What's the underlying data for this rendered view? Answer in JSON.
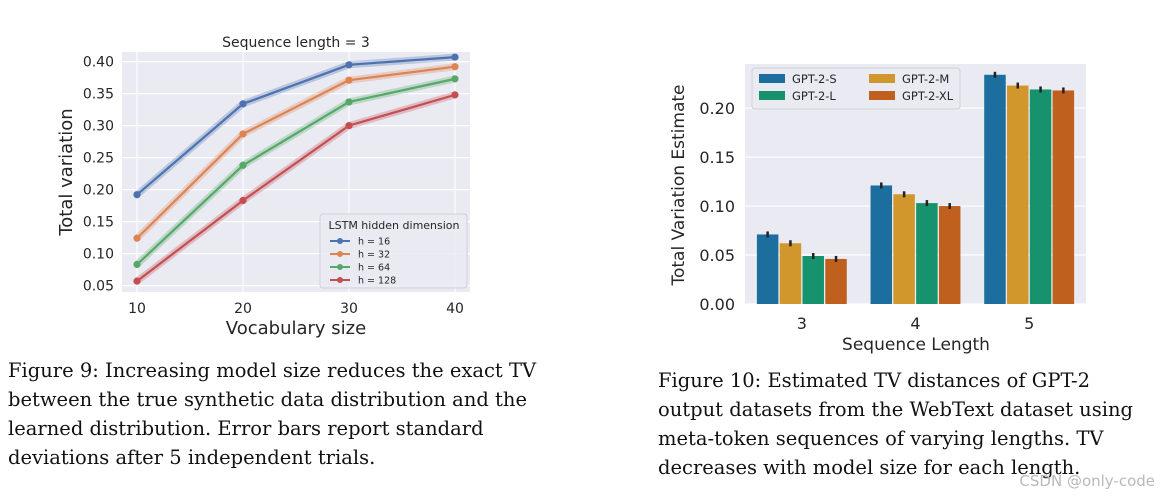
{
  "chart_data": [
    {
      "type": "line",
      "title": "Sequence length = 3",
      "xlabel": "Vocabulary size",
      "ylabel": "Total variation",
      "x": [
        10,
        20,
        30,
        40
      ],
      "xticks": [
        "10",
        "20",
        "30",
        "40"
      ],
      "yticks": [
        "0.05",
        "0.10",
        "0.15",
        "0.20",
        "0.25",
        "0.30",
        "0.35",
        "0.40"
      ],
      "ylim": [
        0.04,
        0.415
      ],
      "legend_title": "LSTM hidden dimension",
      "legend_position": "lower-right",
      "grid": true,
      "series": [
        {
          "name": "h = 16",
          "values": [
            0.192,
            0.334,
            0.395,
            0.407
          ],
          "color": "#4C72B0"
        },
        {
          "name": "h = 32",
          "values": [
            0.124,
            0.287,
            0.371,
            0.392
          ],
          "color": "#DD8452"
        },
        {
          "name": "h = 64",
          "values": [
            0.083,
            0.238,
            0.337,
            0.373
          ],
          "color": "#55A868"
        },
        {
          "name": "h = 128",
          "values": [
            0.057,
            0.183,
            0.3,
            0.348
          ],
          "color": "#C44E52"
        }
      ]
    },
    {
      "type": "bar",
      "title": "",
      "xlabel": "Sequence Length",
      "ylabel": "Total Variation Estimate",
      "categories": [
        "3",
        "4",
        "5"
      ],
      "yticks": [
        "0.00",
        "0.05",
        "0.10",
        "0.15",
        "0.20"
      ],
      "ylim": [
        0,
        0.245
      ],
      "legend_position": "top-left",
      "grid": true,
      "series": [
        {
          "name": "GPT-2-S",
          "values": [
            0.071,
            0.121,
            0.234
          ],
          "color": "#1B6E9E"
        },
        {
          "name": "GPT-2-M",
          "values": [
            0.062,
            0.112,
            0.223
          ],
          "color": "#D1972C"
        },
        {
          "name": "GPT-2-L",
          "values": [
            0.049,
            0.103,
            0.219
          ],
          "color": "#16936C"
        },
        {
          "name": "GPT-2-XL",
          "values": [
            0.046,
            0.1,
            0.218
          ],
          "color": "#C0601F"
        }
      ]
    }
  ],
  "captions": {
    "fig9": "Figure 9: Increasing model size reduces the exact TV between the true synthetic data distribution and the learned distribution. Error bars report standard deviations after 5 independent trials.",
    "fig10": "Figure 10: Estimated TV distances of GPT-2 output datasets from the WebText dataset using meta-token sequences of varying lengths. TV decreases with model size for each length."
  },
  "watermark": "CSDN @only-code"
}
